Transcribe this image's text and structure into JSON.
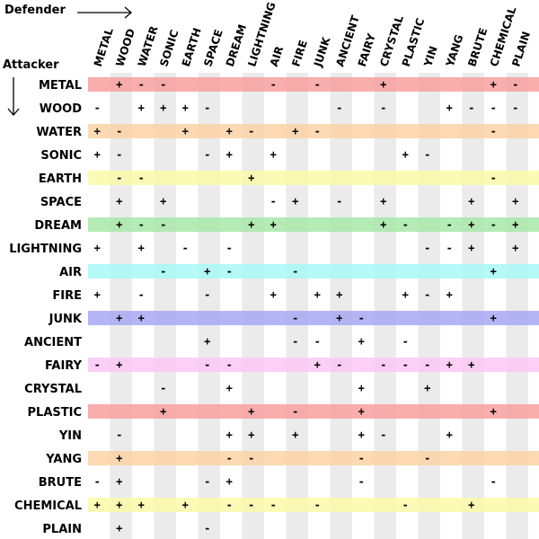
{
  "labels": {
    "defender": "Defender",
    "attacker": "Attacker"
  },
  "chart_data": {
    "type": "table",
    "columns": [
      "METAL",
      "WOOD",
      "WATER",
      "SONIC",
      "EARTH",
      "SPACE",
      "DREAM",
      "LIGHTNING",
      "AIR",
      "FIRE",
      "JUNK",
      "ANCIENT",
      "FAIRY",
      "CRYSTAL",
      "PLASTIC",
      "YIN",
      "YANG",
      "BRUTE",
      "CHEMICAL",
      "PLAIN"
    ],
    "rows": [
      {
        "name": "METAL",
        "color": "#f8a0a0",
        "cells": [
          "",
          "+",
          "-",
          "-",
          "",
          "",
          "",
          "",
          "-",
          "",
          "-",
          "",
          "",
          "+",
          "",
          "",
          "",
          "",
          "+",
          "-"
        ]
      },
      {
        "name": "WOOD",
        "color": "#ffffff",
        "cells": [
          "-",
          "",
          "+",
          "+",
          "+",
          "-",
          "",
          "",
          "",
          "",
          "",
          "-",
          "",
          "-",
          "",
          "",
          "+",
          "-",
          "-",
          "-"
        ]
      },
      {
        "name": "WATER",
        "color": "#fcd2a4",
        "cells": [
          "+",
          "-",
          "",
          "",
          "+",
          "",
          "+",
          "-",
          "",
          "+",
          "-",
          "",
          "",
          "",
          "",
          "",
          "",
          "",
          "-",
          ""
        ]
      },
      {
        "name": "SONIC",
        "color": "#ffffff",
        "cells": [
          "+",
          "-",
          "",
          "",
          "",
          "-",
          "+",
          "",
          "+",
          "",
          "",
          "",
          "",
          "",
          "+",
          "-",
          "",
          "",
          "",
          ""
        ]
      },
      {
        "name": "EARTH",
        "color": "#fbfaa8",
        "cells": [
          "",
          "-",
          "-",
          "",
          "",
          "",
          "",
          "+",
          "",
          "",
          "",
          "",
          "",
          "",
          "",
          "",
          "",
          "",
          "-",
          ""
        ]
      },
      {
        "name": "SPACE",
        "color": "#ffffff",
        "cells": [
          "",
          "+",
          "",
          "+",
          "",
          "",
          "",
          "",
          "-",
          "+",
          "",
          "-",
          "",
          "+",
          "",
          "",
          "",
          "+",
          "",
          "+"
        ]
      },
      {
        "name": "DREAM",
        "color": "#a8e8a8",
        "cells": [
          "",
          "+",
          "-",
          "-",
          "",
          "",
          "",
          "+",
          "+",
          "",
          "",
          "",
          "",
          "+",
          "-",
          "",
          "-",
          "+",
          "-",
          "+"
        ]
      },
      {
        "name": "LIGHTNING",
        "color": "#ffffff",
        "cells": [
          "+",
          "",
          "+",
          "",
          "-",
          "",
          "-",
          "",
          "",
          "",
          "",
          "",
          "",
          "",
          "",
          "-",
          "-",
          "+",
          "",
          "+"
        ]
      },
      {
        "name": "AIR",
        "color": "#a8f8f8",
        "cells": [
          "",
          "",
          "",
          "-",
          "",
          "+",
          "-",
          "",
          "",
          "-",
          "",
          "",
          "",
          "",
          "",
          "",
          "",
          "",
          "+",
          ""
        ]
      },
      {
        "name": "FIRE",
        "color": "#ffffff",
        "cells": [
          "+",
          "",
          "-",
          "",
          "",
          "-",
          "",
          "",
          "+",
          "",
          "+",
          "+",
          "",
          "",
          "+",
          "-",
          "+",
          "",
          "",
          ""
        ]
      },
      {
        "name": "JUNK",
        "color": "#a8a8f4",
        "cells": [
          "",
          "+",
          "+",
          "",
          "",
          "",
          "",
          "",
          "",
          "-",
          "",
          "+",
          "-",
          "",
          "",
          "",
          "",
          "",
          "+",
          ""
        ]
      },
      {
        "name": "ANCIENT",
        "color": "#ffffff",
        "cells": [
          "",
          "",
          "",
          "",
          "",
          "+",
          "",
          "",
          "",
          "-",
          "-",
          "",
          "+",
          "",
          "-",
          "",
          "",
          "",
          "",
          ""
        ]
      },
      {
        "name": "FAIRY",
        "color": "#fcc8f4",
        "cells": [
          "-",
          "+",
          "",
          "",
          "",
          "-",
          "-",
          "",
          "",
          "",
          "+",
          "-",
          "",
          "-",
          "-",
          "-",
          "+",
          "+",
          "",
          ""
        ]
      },
      {
        "name": "CRYSTAL",
        "color": "#ffffff",
        "cells": [
          "",
          "",
          "",
          "-",
          "",
          "",
          "+",
          "",
          "",
          "",
          "",
          "",
          "+",
          "",
          "",
          "+",
          "",
          "",
          "",
          ""
        ]
      },
      {
        "name": "PLASTIC",
        "color": "#f8a0a0",
        "cells": [
          "",
          "",
          "",
          "+",
          "",
          "",
          "",
          "+",
          "",
          "-",
          "",
          "",
          "+",
          "",
          "",
          "",
          "",
          "",
          "+",
          ""
        ]
      },
      {
        "name": "YIN",
        "color": "#ffffff",
        "cells": [
          "",
          "-",
          "",
          "",
          "",
          "",
          "+",
          "+",
          "",
          "+",
          "",
          "",
          "+",
          "-",
          "",
          "",
          "+",
          "",
          "",
          ""
        ]
      },
      {
        "name": "YANG",
        "color": "#fcd2a4",
        "cells": [
          "",
          "+",
          "",
          "",
          "",
          "",
          "-",
          "-",
          "",
          "",
          "",
          "",
          "-",
          "",
          "",
          "-",
          "",
          "",
          "",
          ""
        ]
      },
      {
        "name": "BRUTE",
        "color": "#ffffff",
        "cells": [
          "-",
          "+",
          "",
          "",
          "",
          "-",
          "+",
          "",
          "",
          "",
          "",
          "",
          "-",
          "",
          "",
          "",
          "",
          "",
          "-",
          ""
        ]
      },
      {
        "name": "CHEMICAL",
        "color": "#fbfaa8",
        "cells": [
          "+",
          "+",
          "+",
          "",
          "+",
          "",
          "-",
          "-",
          "-",
          "",
          "-",
          "",
          "",
          "",
          "-",
          "",
          "",
          "+",
          "",
          ""
        ]
      },
      {
        "name": "PLAIN",
        "color": "#ffffff",
        "cells": [
          "",
          "+",
          "",
          "",
          "",
          "-",
          "",
          "",
          "",
          "",
          "",
          "",
          "",
          "",
          "",
          "",
          "",
          "",
          "",
          ""
        ]
      }
    ]
  }
}
